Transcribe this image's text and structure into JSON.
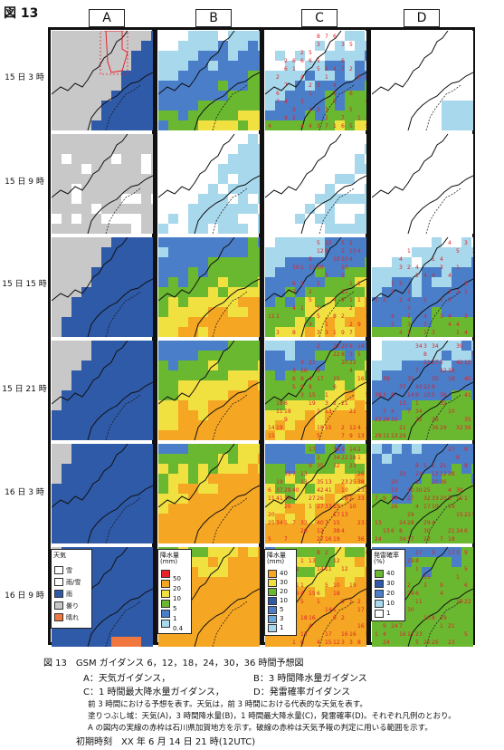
{
  "figure_label": "図 13",
  "column_headers": [
    "A",
    "B",
    "C",
    "D"
  ],
  "row_labels": [
    "15 日 3 時",
    "15 日 9 時",
    "15 日 15 時",
    "15 日 21 時",
    "16 日 3 時",
    "16 日 9 時"
  ],
  "legend_a": {
    "title": "天気",
    "items": [
      {
        "label": "雪",
        "color": "#ffffff"
      },
      {
        "label": "雨/雪",
        "color": "#ffffff"
      },
      {
        "label": "雨",
        "color": "#2f5aa8"
      },
      {
        "label": "曇り",
        "color": "#c8c8c8"
      },
      {
        "label": "晴れ",
        "color": "#f07840"
      }
    ]
  },
  "legend_b": {
    "title": "降水量",
    "unit": "(mm)",
    "items": [
      {
        "label": "50",
        "color": "#e8202a"
      },
      {
        "label": "20",
        "color": "#f5a623"
      },
      {
        "label": "10",
        "color": "#f0e040"
      },
      {
        "label": "5",
        "color": "#6ab830"
      },
      {
        "label": "1",
        "color": "#4a7ec8"
      },
      {
        "label": "0.4",
        "color": "#a8d8ec"
      }
    ]
  },
  "legend_c": {
    "title": "降水量",
    "unit": "(mm)",
    "items": [
      {
        "label": "40",
        "color": "#f5a623"
      },
      {
        "label": "30",
        "color": "#f0e040"
      },
      {
        "label": "20",
        "color": "#6ab830"
      },
      {
        "label": "10",
        "color": "#2f5aa8"
      },
      {
        "label": "5",
        "color": "#4a7ec8"
      },
      {
        "label": "3",
        "color": "#6aa8dc"
      },
      {
        "label": "1",
        "color": "#a8d8ec"
      }
    ]
  },
  "legend_d": {
    "title": "発雷確率",
    "unit": "(%)",
    "items": [
      {
        "label": "40",
        "color": "#6ab830"
      },
      {
        "label": "30",
        "color": "#2f5aa8"
      },
      {
        "label": "20",
        "color": "#4a7ec8"
      },
      {
        "label": "10",
        "color": "#a8d8ec"
      },
      {
        "label": "1",
        "color": "#ffffff"
      }
    ]
  },
  "caption": {
    "line1": "図 13　GSM ガイダンス 6，12，18，24，30，36 時間予想図",
    "line2a": "A：天気ガイダンス，",
    "line2b": "B：3 時間降水量ガイダンス",
    "line3a": "C：1 時間最大降水量ガイダンス，",
    "line3b": "D：発雷確率ガイダンス",
    "note1": "前 3 時間における予想を表す。天気は，前 3 時間における代表的な天気を表す。",
    "note2": "塗りつぶし域：天気(A)，3 時間降水量(B)，1 時間最大降水量(C)，発雷確率(D)。それぞれ凡例のとおり。",
    "note3": "A の図内の実線の赤枠は石川県加賀地方を示す。破線の赤枠は天気予報の判定に用いる範囲を示す。",
    "initial_time": "初期時刻　XX 年 6 月 14 日 21 時(12UTC)"
  },
  "palette": {
    "rain": "#2f5aa8",
    "cloudy": "#c8c8c8",
    "sunny": "#f07840",
    "light_blue": "#a8d8ec",
    "mid_blue": "#6aa8dc",
    "blue": "#4a7ec8",
    "green": "#6ab830",
    "yellow": "#f0e040",
    "orange": "#f5a623",
    "red": "#e8202a",
    "number_color": "#e0202a"
  }
}
